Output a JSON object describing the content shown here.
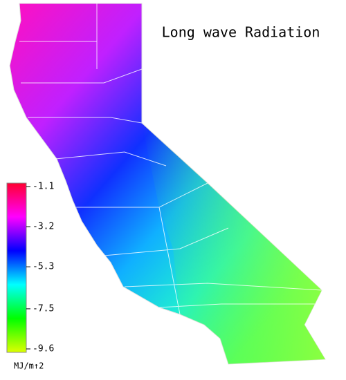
{
  "title": "Long wave Radiation",
  "colorbar": {
    "lim": [
      -1.1,
      -9.6
    ],
    "ticks": [
      -1.1,
      -3.2,
      -5.3,
      -7.5,
      -9.6
    ],
    "colors": [
      "#ff0030",
      "#ff00ff",
      "#0000ff",
      "#00ffff",
      "#00ff00",
      "#ddff00"
    ],
    "unit": "MJ/m↑2"
  }
}
